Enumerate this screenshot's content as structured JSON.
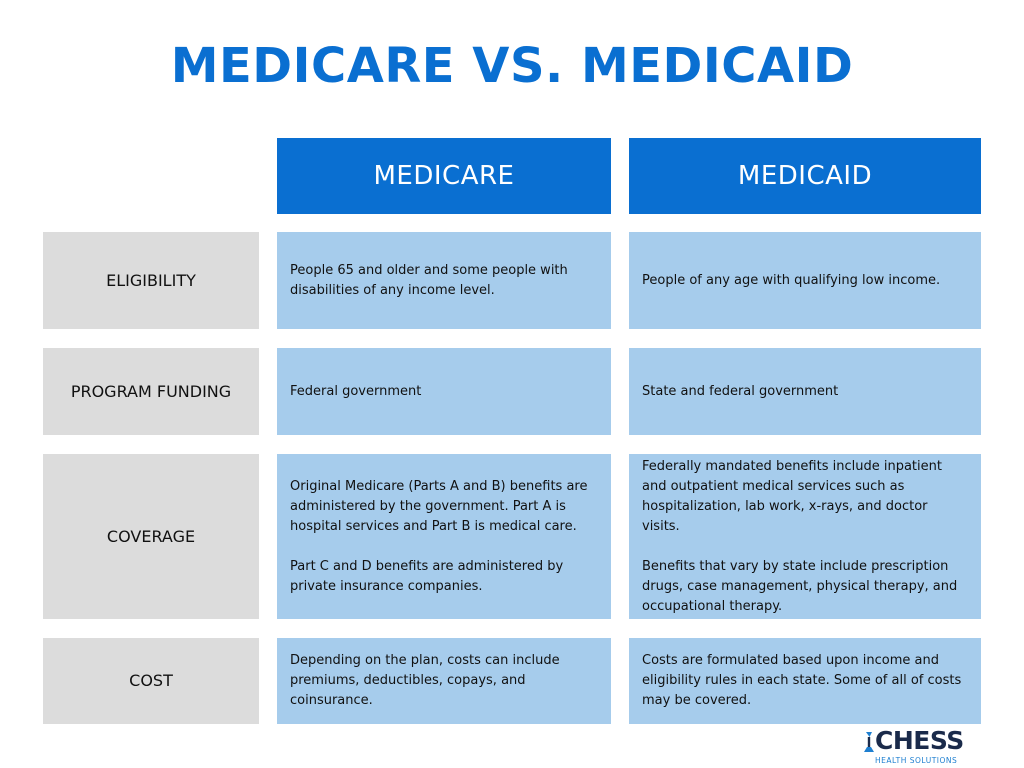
{
  "title": "MEDICARE VS. MEDICAID",
  "columns": [
    "MEDICARE",
    "MEDICAID"
  ],
  "rows": [
    {
      "label": "ELIGIBILITY",
      "medicare": "People 65 and older and some people with disabilities of any income level.",
      "medicaid": "People of any age with qualifying low income."
    },
    {
      "label": "PROGRAM FUNDING",
      "medicare": "Federal government",
      "medicaid": "State and federal government"
    },
    {
      "label": "COVERAGE",
      "medicare": "Original Medicare (Parts A and B) benefits are administered by the government. Part A is hospital services and Part B is medical care.\n\nPart C and D benefits are administered by private insurance companies.",
      "medicaid": "Federally mandated benefits include inpatient and outpatient medical services such as hospitalization, lab work, x-rays, and doctor visits.\n\nBenefits that vary by state include prescription drugs, case management, physical therapy, and occupational therapy."
    },
    {
      "label": "COST",
      "medicare": "Depending on the plan, costs can include premiums, deductibles, copays, and coinsurance.",
      "medicaid": "Costs are formulated based upon income and eligibility rules in each state. Some of all of costs may be covered."
    }
  ],
  "logo": {
    "name": "CHESS",
    "tagline": "HEALTH SOLUTIONS",
    "colors": {
      "mark": "#1e7fd0",
      "word": "#1a2a4a"
    }
  },
  "colors": {
    "title": "#0a6fd1",
    "column_header": "#0a6fd1",
    "label_cell": "#dcdcdc",
    "data_cell": "#a6ccec"
  }
}
